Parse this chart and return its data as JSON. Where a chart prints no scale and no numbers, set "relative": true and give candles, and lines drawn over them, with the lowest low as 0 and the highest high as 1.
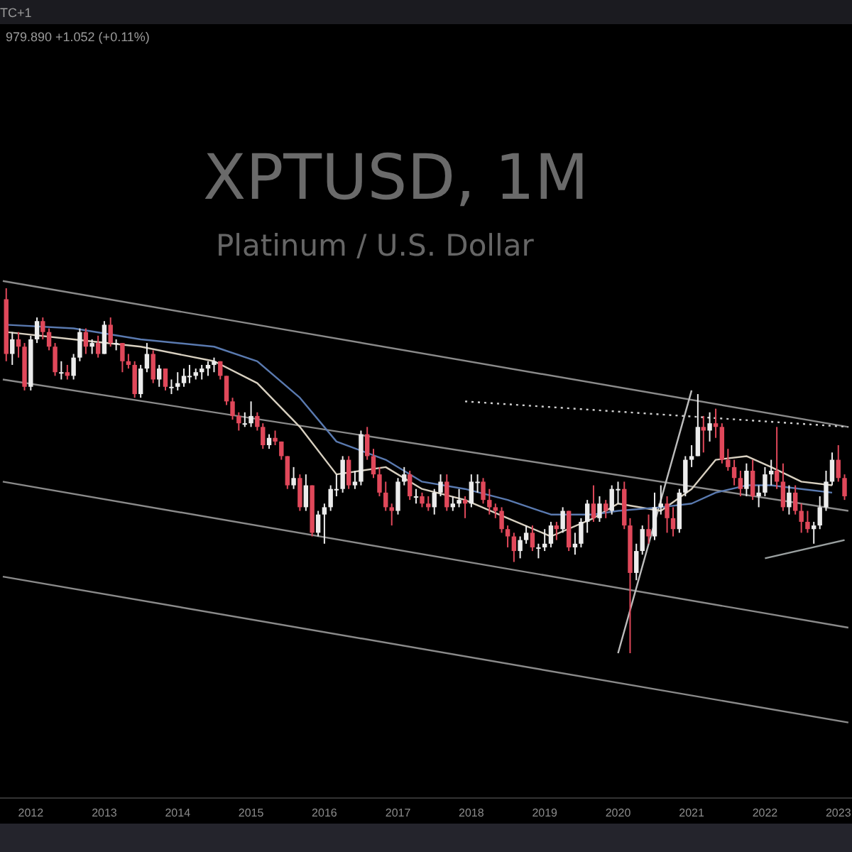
{
  "chart_data": {
    "type": "candlestick",
    "title": "XPTUSD, 1M",
    "subtitle": "Platinum / U.S. Dollar",
    "annotations": [
      "TC+1",
      "979.890 +1.052 (+0.11%)"
    ],
    "relative": true,
    "grid": false,
    "colors": [
      "#e0485a",
      "#ececec",
      "#e0485a",
      "#e0485a",
      "#ececec",
      "#ececec",
      "#e0485a",
      "#e0485a",
      "#e0485a",
      "#ececec",
      "#e0485a",
      "#ececec",
      "#ececec",
      "#e0485a",
      "#ececec",
      "#e0485a",
      "#ececec",
      "#e0485a",
      "#ececec",
      "#e0485a",
      "#e0485a",
      "#e0485a",
      "#ececec",
      "#ececec",
      "#e0485a",
      "#ececec",
      "#e0485a",
      "#ececec",
      "#ececec",
      "#ececec",
      "#ececec",
      "#ececec",
      "#ececec",
      "#ececec",
      "#ececec",
      "#e0485a",
      "#e0485a",
      "#e0485a",
      "#e0485a",
      "#ececec",
      "#ececec",
      "#e0485a",
      "#e0485a",
      "#ececec",
      "#e0485a",
      "#e0485a",
      "#e0485a",
      "#ececec",
      "#e0485a",
      "#ececec",
      "#e0485a",
      "#ececec",
      "#ececec",
      "#ececec",
      "#ececec",
      "#ececec",
      "#e0485a",
      "#ececec",
      "#ececec",
      "#e0485a",
      "#e0485a",
      "#e0485a",
      "#e0485a",
      "#e0485a",
      "#ececec",
      "#ececec",
      "#e0485a",
      "#ececec",
      "#e0485a",
      "#e0485a",
      "#ececec",
      "#ececec",
      "#e0485a",
      "#ececec",
      "#ececec",
      "#e0485a",
      "#ececec",
      "#ececec",
      "#e0485a",
      "#e0485a",
      "#e0485a",
      "#e0485a",
      "#e0485a",
      "#e0485a",
      "#ececec",
      "#ececec",
      "#e0485a",
      "#ececec",
      "#ececec",
      "#ececec",
      "#e0485a",
      "#ececec",
      "#e0485a",
      "#ececec",
      "#ececec",
      "#ececec",
      "#e0485a",
      "#ececec",
      "#e0485a",
      "#ececec",
      "#ececec",
      "#e0485a",
      "#e0485a",
      "#ececec",
      "#ececec",
      "#e0485a",
      "#ececec",
      "#ececec",
      "#e0485a",
      "#e0485a",
      "#ececec",
      "#ececec",
      "#ececec",
      "#ececec",
      "#e0485a",
      "#ececec",
      "#e0485a",
      "#e0485a",
      "#e0485a",
      "#e0485a",
      "#e0485a",
      "#ececec",
      "#e0485a",
      "#ececec",
      "#ececec",
      "#ececec",
      "#e0485a",
      "#e0485a",
      "#ececec",
      "#e0485a",
      "#e0485a",
      "#e0485a",
      "#ececec",
      "#ececec",
      "#ececec",
      "#ececec",
      "#e0485a",
      "#e0485a"
    ],
    "xlim": [
      "2011-08-01",
      "2023-03-10"
    ],
    "xticks": [
      "2012",
      "2013",
      "2014",
      "2015",
      "2016",
      "2017",
      "2018",
      "2019",
      "2020",
      "2021",
      "2022",
      "2023"
    ],
    "x": [
      "2011-09",
      "2011-10",
      "2011-11",
      "2011-12",
      "2012-01",
      "2012-02",
      "2012-03",
      "2012-04",
      "2012-05",
      "2012-06",
      "2012-07",
      "2012-08",
      "2012-09",
      "2012-10",
      "2012-11",
      "2012-12",
      "2013-01",
      "2013-02",
      "2013-03",
      "2013-04",
      "2013-05",
      "2013-06",
      "2013-07",
      "2013-08",
      "2013-09",
      "2013-10",
      "2013-11",
      "2013-12",
      "2014-01",
      "2014-02",
      "2014-03",
      "2014-04",
      "2014-05",
      "2014-06",
      "2014-07",
      "2014-08",
      "2014-09",
      "2014-10",
      "2014-11",
      "2014-12",
      "2015-01",
      "2015-02",
      "2015-03",
      "2015-04",
      "2015-05",
      "2015-06",
      "2015-07",
      "2015-08",
      "2015-09",
      "2015-10",
      "2015-11",
      "2015-12",
      "2016-01",
      "2016-02",
      "2016-03",
      "2016-04",
      "2016-05",
      "2016-06",
      "2016-07",
      "2016-08",
      "2016-09",
      "2016-10",
      "2016-11",
      "2016-12",
      "2017-01",
      "2017-02",
      "2017-03",
      "2017-04",
      "2017-05",
      "2017-06",
      "2017-07",
      "2017-08",
      "2017-09",
      "2017-10",
      "2017-11",
      "2017-12",
      "2018-01",
      "2018-02",
      "2018-03",
      "2018-04",
      "2018-05",
      "2018-06",
      "2018-07",
      "2018-08",
      "2018-09",
      "2018-10",
      "2018-11",
      "2018-12",
      "2019-01",
      "2019-02",
      "2019-03",
      "2019-04",
      "2019-05",
      "2019-06",
      "2019-07",
      "2019-08",
      "2019-09",
      "2019-10",
      "2019-11",
      "2019-12",
      "2020-01",
      "2020-02",
      "2020-03",
      "2020-04",
      "2020-05",
      "2020-06",
      "2020-07",
      "2020-08",
      "2020-09",
      "2020-10",
      "2020-11",
      "2020-12",
      "2021-01",
      "2021-02",
      "2021-03",
      "2021-04",
      "2021-05",
      "2021-06",
      "2021-07",
      "2021-08",
      "2021-09",
      "2021-10",
      "2021-11",
      "2021-12",
      "2022-01",
      "2022-02",
      "2022-03",
      "2022-04",
      "2022-05",
      "2022-06",
      "2022-07",
      "2022-08",
      "2022-09",
      "2022-10",
      "2022-11",
      "2022-12",
      "2023-01",
      "2023-02"
    ],
    "ohlc": [
      [
        0.97,
        1.0,
        0.8,
        0.82
      ],
      [
        0.82,
        0.88,
        0.79,
        0.86
      ],
      [
        0.86,
        0.88,
        0.81,
        0.84
      ],
      [
        0.84,
        0.85,
        0.72,
        0.73
      ],
      [
        0.73,
        0.87,
        0.72,
        0.86
      ],
      [
        0.86,
        0.92,
        0.85,
        0.91
      ],
      [
        0.91,
        0.92,
        0.86,
        0.88
      ],
      [
        0.88,
        0.89,
        0.83,
        0.84
      ],
      [
        0.84,
        0.85,
        0.76,
        0.77
      ],
      [
        0.77,
        0.8,
        0.75,
        0.77
      ],
      [
        0.77,
        0.79,
        0.75,
        0.76
      ],
      [
        0.76,
        0.82,
        0.75,
        0.81
      ],
      [
        0.81,
        0.89,
        0.8,
        0.88
      ],
      [
        0.88,
        0.89,
        0.82,
        0.84
      ],
      [
        0.84,
        0.86,
        0.82,
        0.85
      ],
      [
        0.85,
        0.87,
        0.81,
        0.82
      ],
      [
        0.82,
        0.91,
        0.82,
        0.9
      ],
      [
        0.9,
        0.92,
        0.84,
        0.85
      ],
      [
        0.85,
        0.86,
        0.83,
        0.85
      ],
      [
        0.85,
        0.85,
        0.77,
        0.8
      ],
      [
        0.8,
        0.82,
        0.78,
        0.79
      ],
      [
        0.79,
        0.8,
        0.7,
        0.71
      ],
      [
        0.71,
        0.79,
        0.7,
        0.78
      ],
      [
        0.78,
        0.85,
        0.77,
        0.82
      ],
      [
        0.82,
        0.83,
        0.74,
        0.75
      ],
      [
        0.75,
        0.79,
        0.73,
        0.78
      ],
      [
        0.78,
        0.78,
        0.72,
        0.73
      ],
      [
        0.73,
        0.75,
        0.71,
        0.73
      ],
      [
        0.73,
        0.77,
        0.72,
        0.74
      ],
      [
        0.74,
        0.78,
        0.73,
        0.76
      ],
      [
        0.76,
        0.79,
        0.74,
        0.76
      ],
      [
        0.76,
        0.78,
        0.75,
        0.77
      ],
      [
        0.77,
        0.79,
        0.75,
        0.78
      ],
      [
        0.78,
        0.8,
        0.76,
        0.79
      ],
      [
        0.79,
        0.81,
        0.77,
        0.8
      ],
      [
        0.8,
        0.8,
        0.75,
        0.76
      ],
      [
        0.76,
        0.76,
        0.68,
        0.69
      ],
      [
        0.69,
        0.7,
        0.64,
        0.65
      ],
      [
        0.65,
        0.66,
        0.61,
        0.63
      ],
      [
        0.63,
        0.66,
        0.62,
        0.63
      ],
      [
        0.63,
        0.69,
        0.62,
        0.65
      ],
      [
        0.65,
        0.66,
        0.61,
        0.62
      ],
      [
        0.62,
        0.63,
        0.56,
        0.57
      ],
      [
        0.57,
        0.6,
        0.56,
        0.59
      ],
      [
        0.59,
        0.61,
        0.57,
        0.58
      ],
      [
        0.58,
        0.58,
        0.53,
        0.54
      ],
      [
        0.54,
        0.54,
        0.45,
        0.46
      ],
      [
        0.46,
        0.51,
        0.45,
        0.48
      ],
      [
        0.48,
        0.49,
        0.39,
        0.4
      ],
      [
        0.4,
        0.49,
        0.39,
        0.46
      ],
      [
        0.46,
        0.46,
        0.32,
        0.33
      ],
      [
        0.33,
        0.39,
        0.32,
        0.38
      ],
      [
        0.38,
        0.41,
        0.3,
        0.4
      ],
      [
        0.4,
        0.46,
        0.39,
        0.45
      ],
      [
        0.45,
        0.49,
        0.43,
        0.45
      ],
      [
        0.45,
        0.54,
        0.44,
        0.53
      ],
      [
        0.53,
        0.54,
        0.45,
        0.46
      ],
      [
        0.46,
        0.5,
        0.45,
        0.47
      ],
      [
        0.47,
        0.61,
        0.46,
        0.6
      ],
      [
        0.6,
        0.62,
        0.53,
        0.54
      ],
      [
        0.54,
        0.56,
        0.48,
        0.49
      ],
      [
        0.49,
        0.51,
        0.43,
        0.44
      ],
      [
        0.44,
        0.47,
        0.39,
        0.4
      ],
      [
        0.4,
        0.41,
        0.35,
        0.39
      ],
      [
        0.39,
        0.48,
        0.38,
        0.47
      ],
      [
        0.47,
        0.51,
        0.46,
        0.49
      ],
      [
        0.49,
        0.5,
        0.42,
        0.43
      ],
      [
        0.43,
        0.45,
        0.41,
        0.43
      ],
      [
        0.43,
        0.44,
        0.4,
        0.41
      ],
      [
        0.41,
        0.43,
        0.39,
        0.4
      ],
      [
        0.4,
        0.45,
        0.38,
        0.44
      ],
      [
        0.44,
        0.49,
        0.43,
        0.47
      ],
      [
        0.47,
        0.49,
        0.39,
        0.4
      ],
      [
        0.4,
        0.43,
        0.39,
        0.41
      ],
      [
        0.41,
        0.45,
        0.4,
        0.42
      ],
      [
        0.42,
        0.43,
        0.37,
        0.41
      ],
      [
        0.41,
        0.49,
        0.4,
        0.47
      ],
      [
        0.47,
        0.49,
        0.44,
        0.47
      ],
      [
        0.47,
        0.48,
        0.41,
        0.42
      ],
      [
        0.42,
        0.45,
        0.38,
        0.4
      ],
      [
        0.4,
        0.41,
        0.37,
        0.39
      ],
      [
        0.39,
        0.4,
        0.33,
        0.34
      ],
      [
        0.34,
        0.35,
        0.29,
        0.32
      ],
      [
        0.32,
        0.33,
        0.25,
        0.28
      ],
      [
        0.28,
        0.32,
        0.26,
        0.31
      ],
      [
        0.31,
        0.35,
        0.3,
        0.33
      ],
      [
        0.33,
        0.35,
        0.28,
        0.29
      ],
      [
        0.29,
        0.3,
        0.26,
        0.29
      ],
      [
        0.29,
        0.34,
        0.28,
        0.3
      ],
      [
        0.3,
        0.36,
        0.29,
        0.35
      ],
      [
        0.35,
        0.36,
        0.31,
        0.34
      ],
      [
        0.34,
        0.4,
        0.33,
        0.39
      ],
      [
        0.39,
        0.39,
        0.28,
        0.29
      ],
      [
        0.29,
        0.33,
        0.27,
        0.3
      ],
      [
        0.3,
        0.37,
        0.29,
        0.36
      ],
      [
        0.36,
        0.42,
        0.33,
        0.41
      ],
      [
        0.41,
        0.46,
        0.36,
        0.37
      ],
      [
        0.37,
        0.43,
        0.36,
        0.41
      ],
      [
        0.41,
        0.42,
        0.37,
        0.39
      ],
      [
        0.39,
        0.46,
        0.38,
        0.45
      ],
      [
        0.45,
        0.47,
        0.41,
        0.45
      ],
      [
        0.45,
        0.47,
        0.34,
        0.35
      ],
      [
        0.35,
        0.37,
        0.0,
        0.22
      ],
      [
        0.22,
        0.3,
        0.2,
        0.28
      ],
      [
        0.28,
        0.35,
        0.27,
        0.34
      ],
      [
        0.34,
        0.38,
        0.3,
        0.32
      ],
      [
        0.32,
        0.44,
        0.31,
        0.4
      ],
      [
        0.4,
        0.46,
        0.38,
        0.41
      ],
      [
        0.41,
        0.43,
        0.33,
        0.37
      ],
      [
        0.37,
        0.4,
        0.32,
        0.34
      ],
      [
        0.34,
        0.45,
        0.33,
        0.44
      ],
      [
        0.44,
        0.54,
        0.43,
        0.53
      ],
      [
        0.53,
        0.57,
        0.51,
        0.54
      ],
      [
        0.54,
        0.71,
        0.54,
        0.62
      ],
      [
        0.62,
        0.65,
        0.55,
        0.61
      ],
      [
        0.61,
        0.66,
        0.58,
        0.63
      ],
      [
        0.63,
        0.67,
        0.59,
        0.62
      ],
      [
        0.62,
        0.63,
        0.52,
        0.53
      ],
      [
        0.53,
        0.56,
        0.5,
        0.51
      ],
      [
        0.51,
        0.53,
        0.46,
        0.48
      ],
      [
        0.48,
        0.5,
        0.43,
        0.45
      ],
      [
        0.45,
        0.52,
        0.43,
        0.5
      ],
      [
        0.5,
        0.53,
        0.42,
        0.43
      ],
      [
        0.43,
        0.46,
        0.4,
        0.44
      ],
      [
        0.44,
        0.51,
        0.43,
        0.49
      ],
      [
        0.49,
        0.53,
        0.46,
        0.5
      ],
      [
        0.5,
        0.62,
        0.45,
        0.47
      ],
      [
        0.47,
        0.52,
        0.39,
        0.4
      ],
      [
        0.4,
        0.46,
        0.38,
        0.44
      ],
      [
        0.44,
        0.46,
        0.38,
        0.39
      ],
      [
        0.39,
        0.41,
        0.33,
        0.36
      ],
      [
        0.36,
        0.39,
        0.33,
        0.34
      ],
      [
        0.34,
        0.36,
        0.3,
        0.35
      ],
      [
        0.35,
        0.43,
        0.34,
        0.4
      ],
      [
        0.4,
        0.5,
        0.39,
        0.47
      ],
      [
        0.47,
        0.55,
        0.46,
        0.53
      ],
      [
        0.53,
        0.57,
        0.47,
        0.48
      ],
      [
        0.48,
        0.49,
        0.42,
        0.43
      ]
    ],
    "series": [
      {
        "type": "line",
        "color": "#8a8a8a",
        "line_style": "solid",
        "x": [
          "2011-08-15",
          "2023-02-20"
        ],
        "values": [
          1.02,
          0.62
        ]
      },
      {
        "type": "line",
        "color": "#8a8a8a",
        "line_style": "solid",
        "x": [
          "2011-08-15",
          "2023-02-20"
        ],
        "values": [
          0.75,
          0.39
        ]
      },
      {
        "type": "line",
        "color": "#8a8a8a",
        "line_style": "solid",
        "x": [
          "2011-08-15",
          "2023-02-20"
        ],
        "values": [
          0.47,
          0.07
        ]
      },
      {
        "type": "line",
        "color": "#8a8a8a",
        "line_style": "solid",
        "x": [
          "2011-08-15",
          "2023-02-20"
        ],
        "values": [
          0.21,
          -0.19
        ]
      },
      {
        "type": "line",
        "color": "#cfcfcf",
        "line_style": "dotted",
        "x": [
          "2017-12",
          "2023-02-20"
        ],
        "values": [
          0.69,
          0.62
        ]
      },
      {
        "type": "line",
        "color": "#bdbdbd",
        "line_style": "solid",
        "x": [
          "2020-01",
          "2021-01"
        ],
        "values": [
          0.0,
          0.72
        ]
      },
      {
        "type": "line",
        "color": "#9aa0a0",
        "line_style": "solid",
        "x": [
          "2022-01",
          "2023-02"
        ],
        "values": [
          0.26,
          0.31
        ]
      },
      {
        "type": "line",
        "color": "#d8d0c0",
        "line_style": "solid",
        "x": [
          "2011-09",
          "2012-08",
          "2013-07",
          "2014-07",
          "2015-02",
          "2015-09",
          "2016-03",
          "2016-11",
          "2017-05",
          "2017-12",
          "2018-07",
          "2019-02",
          "2019-09",
          "2020-01",
          "2020-08",
          "2021-01",
          "2021-05",
          "2021-10",
          "2022-02",
          "2022-07",
          "2022-12"
        ],
        "values": [
          0.88,
          0.86,
          0.84,
          0.8,
          0.74,
          0.62,
          0.49,
          0.51,
          0.45,
          0.42,
          0.37,
          0.32,
          0.37,
          0.41,
          0.39,
          0.45,
          0.53,
          0.54,
          0.51,
          0.47,
          0.46
        ]
      },
      {
        "type": "line",
        "color": "#5a7ab0",
        "line_style": "solid",
        "x": [
          "2011-09",
          "2012-08",
          "2013-07",
          "2014-07",
          "2015-02",
          "2015-09",
          "2016-03",
          "2016-11",
          "2017-05",
          "2017-12",
          "2018-07",
          "2019-02",
          "2019-09",
          "2020-01",
          "2020-08",
          "2021-01",
          "2021-05",
          "2021-10",
          "2022-02",
          "2022-07",
          "2022-12"
        ],
        "values": [
          0.9,
          0.89,
          0.86,
          0.84,
          0.8,
          0.7,
          0.58,
          0.53,
          0.47,
          0.45,
          0.42,
          0.38,
          0.38,
          0.39,
          0.4,
          0.41,
          0.44,
          0.46,
          0.46,
          0.45,
          0.44
        ]
      }
    ]
  }
}
